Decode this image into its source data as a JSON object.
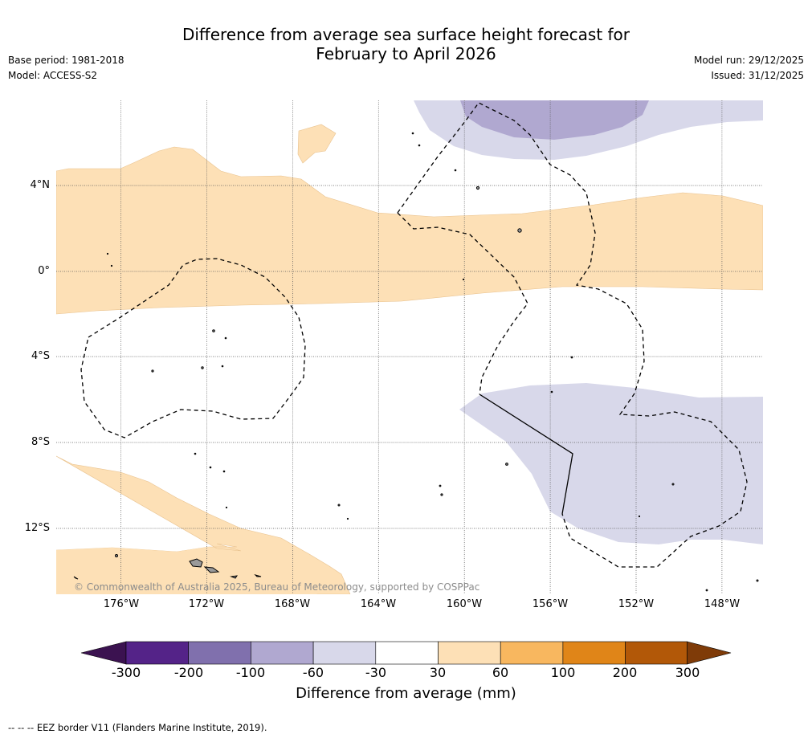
{
  "title_line1": "Difference from average sea surface height forecast for",
  "title_line2": "February to April 2026",
  "base_period": "Base period: 1981-2018",
  "model": "Model: ACCESS-S2",
  "model_run": "Model run: 29/12/2025",
  "issued": "Issued: 31/12/2025",
  "lat_labels": [
    "4°N",
    "0°",
    "4°S",
    "8°S",
    "12°S"
  ],
  "lon_labels": [
    "176°W",
    "172°W",
    "168°W",
    "164°W",
    "160°W",
    "156°W",
    "152°W",
    "148°W"
  ],
  "copyright": "© Commonwealth of Australia 2025, Bureau of Meteorology, supported by COSPPac",
  "colorbar": {
    "ticks": [
      "-300",
      "-200",
      "-100",
      "-60",
      "-30",
      "30",
      "60",
      "100",
      "200",
      "300"
    ],
    "colors": [
      "#3b1250",
      "#542388",
      "#8070ad",
      "#b0a8d0",
      "#d8d8ea",
      "#ffffff",
      "#fde0b6",
      "#f8b75f",
      "#e08518",
      "#b25808",
      "#7f3b08"
    ],
    "label": "Difference from average (mm)"
  },
  "legend": {
    "eez": "--  --  -- EEZ border V11 (Flanders Marine Institute, 2019)."
  }
}
